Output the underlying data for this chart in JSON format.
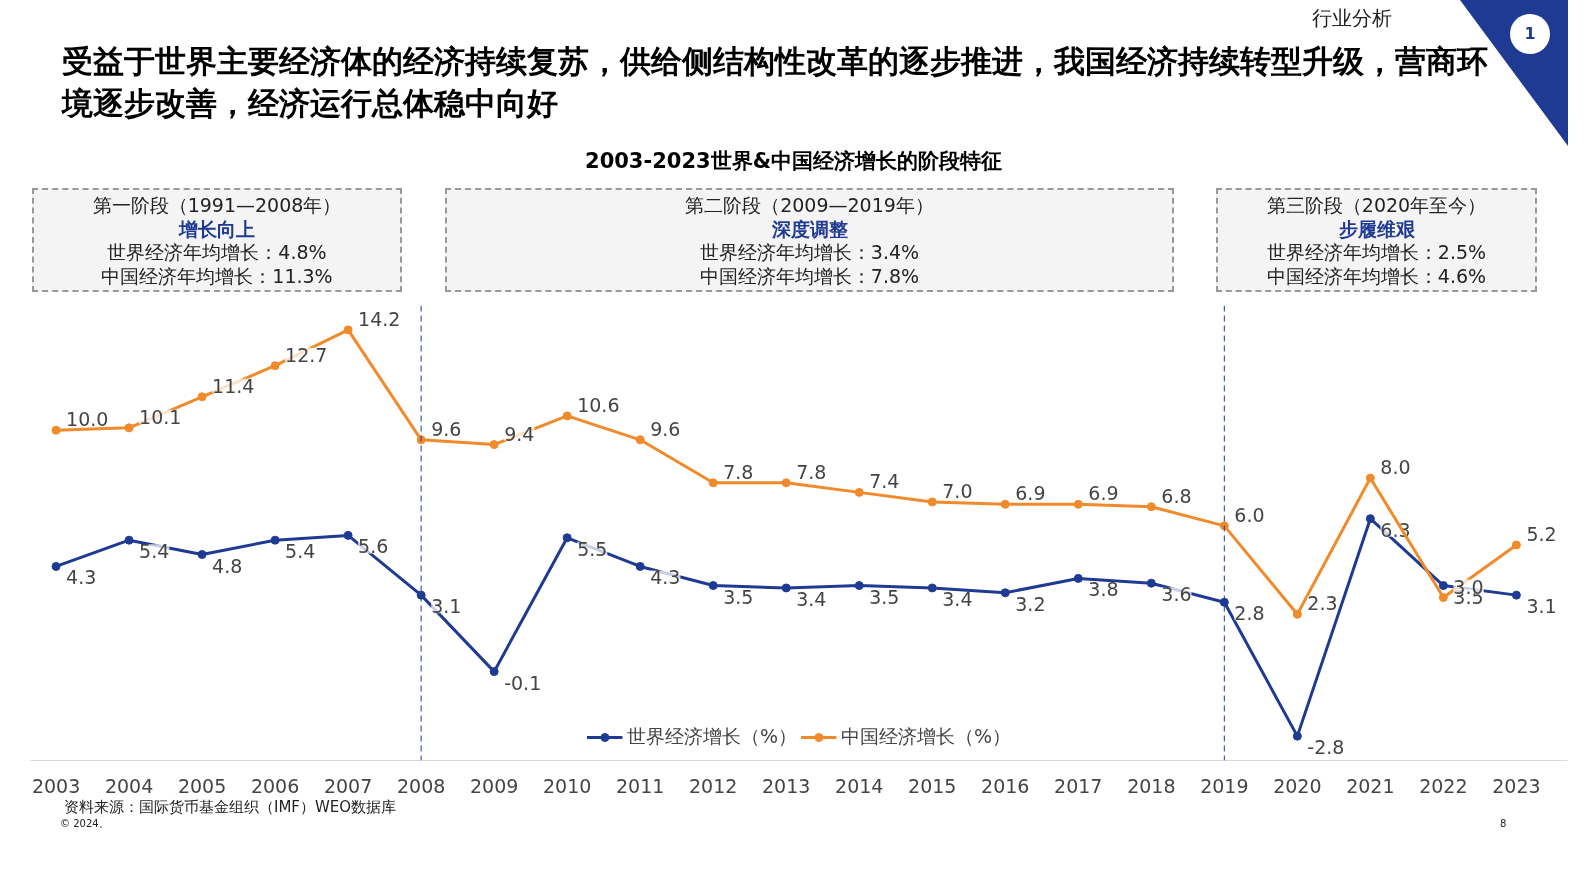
{
  "chart_data": {
    "type": "line",
    "title": "受益于世界主要经济体的经济持续复苏，供给侧结构性改革的逐步推进，我国经济持续转型升级，营商环境逐步改善，经济运行总体稳中向好",
    "subtitle": "2003-2023世界&中国经济增长的阶段特征",
    "categories": [
      "2003",
      "2004",
      "2005",
      "2006",
      "2007",
      "2008",
      "2009",
      "2010",
      "2011",
      "2012",
      "2013",
      "2014",
      "2015",
      "2016",
      "2017",
      "2018",
      "2019",
      "2020",
      "2021",
      "2022",
      "2023"
    ],
    "series": [
      {
        "name": "世界经济增长（%）",
        "color": "#1f3a93",
        "values": [
          4.3,
          5.4,
          4.8,
          5.4,
          5.6,
          3.1,
          -0.1,
          5.5,
          4.3,
          3.5,
          3.4,
          3.5,
          3.4,
          3.2,
          3.8,
          3.6,
          2.8,
          -2.8,
          6.3,
          3.5,
          3.1
        ],
        "value_labels": [
          "4.3",
          "5.4",
          "4.8",
          "5.4",
          "5.6",
          "3.1",
          "-0.1",
          "5.5",
          "4.3",
          "3.5",
          "3.4",
          "3.5",
          "3.4",
          "3.2",
          "3.8",
          "3.6",
          "2.8",
          "-2.8",
          "6.3",
          "3.5",
          "3.1"
        ]
      },
      {
        "name": "中国经济增长（%）",
        "color": "#f08a2b",
        "values": [
          10.0,
          10.1,
          11.4,
          12.7,
          14.2,
          9.6,
          9.4,
          10.6,
          9.6,
          7.8,
          7.8,
          7.4,
          7.0,
          6.9,
          6.9,
          6.8,
          6.0,
          2.3,
          8.0,
          3.0,
          5.2
        ],
        "value_labels": [
          "10.0",
          "10.1",
          "11.4",
          "12.7",
          "14.2",
          "9.6",
          "9.4",
          "10.6",
          "9.6",
          "7.8",
          "7.8",
          "7.4",
          "7.0",
          "6.9",
          "6.9",
          "6.8",
          "6.0",
          "2.3",
          "8.0",
          "3.0",
          "5.2"
        ]
      }
    ],
    "tick_labels": "x",
    "grid": false,
    "legend": "bottom",
    "marker": "circle",
    "line_style": "solid",
    "ref_lines": [
      {
        "axis": "x",
        "value": "2008",
        "label": null,
        "color": "#1f3a93",
        "line_style": "dashed"
      },
      {
        "axis": "x",
        "value": "2019",
        "label": null,
        "color": "#1f3a93",
        "line_style": "dashed"
      }
    ],
    "annotations": [
      "第一阶段（1991—2008年）",
      "增长向上",
      "世界经济年均增长：4.8%",
      "中国经济年均增长：11.3%",
      "第二阶段（2009—2019年）",
      "深度调整",
      "世界经济年均增长：3.4%",
      "中国经济年均增长：7.8%",
      "第三阶段（2020年至今）",
      "步履维艰",
      "世界经济年均增长：2.5%",
      "中国经济年均增长：4.6%",
      "资料来源：国际货币基金组织（IMF）WEO数据库",
      "© 2024。",
      "8",
      "行业分析",
      "1"
    ]
  }
}
